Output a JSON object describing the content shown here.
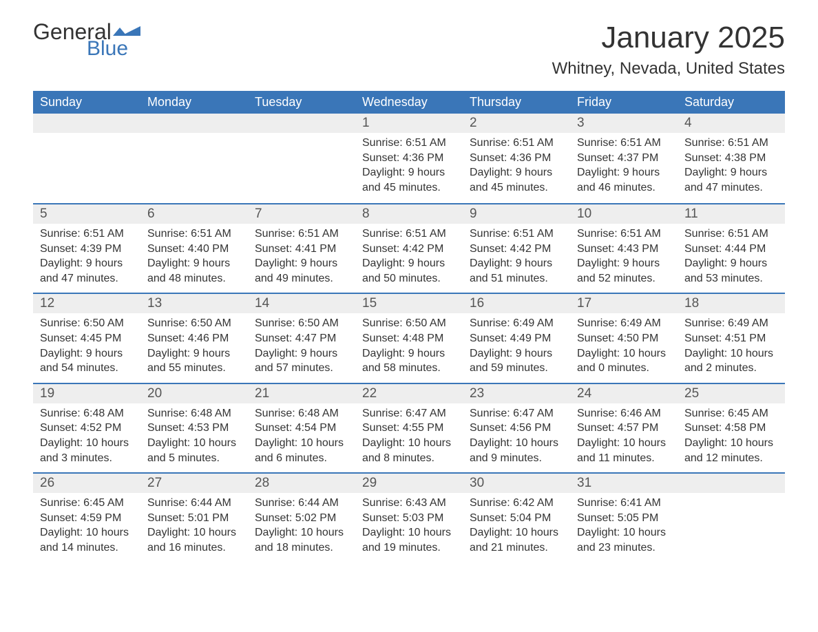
{
  "logo": {
    "general": "General",
    "blue": "Blue"
  },
  "title": "January 2025",
  "location": "Whitney, Nevada, United States",
  "colors": {
    "header_bg": "#3a76b8",
    "header_text": "#ffffff",
    "daynum_bg": "#eeeeee",
    "border": "#3a76b8",
    "text": "#333333"
  },
  "dayNames": [
    "Sunday",
    "Monday",
    "Tuesday",
    "Wednesday",
    "Thursday",
    "Friday",
    "Saturday"
  ],
  "weeks": [
    [
      {
        "day": "",
        "sunrise": "",
        "sunset": "",
        "daylight": ""
      },
      {
        "day": "",
        "sunrise": "",
        "sunset": "",
        "daylight": ""
      },
      {
        "day": "",
        "sunrise": "",
        "sunset": "",
        "daylight": ""
      },
      {
        "day": "1",
        "sunrise": "Sunrise: 6:51 AM",
        "sunset": "Sunset: 4:36 PM",
        "daylight": "Daylight: 9 hours and 45 minutes."
      },
      {
        "day": "2",
        "sunrise": "Sunrise: 6:51 AM",
        "sunset": "Sunset: 4:36 PM",
        "daylight": "Daylight: 9 hours and 45 minutes."
      },
      {
        "day": "3",
        "sunrise": "Sunrise: 6:51 AM",
        "sunset": "Sunset: 4:37 PM",
        "daylight": "Daylight: 9 hours and 46 minutes."
      },
      {
        "day": "4",
        "sunrise": "Sunrise: 6:51 AM",
        "sunset": "Sunset: 4:38 PM",
        "daylight": "Daylight: 9 hours and 47 minutes."
      }
    ],
    [
      {
        "day": "5",
        "sunrise": "Sunrise: 6:51 AM",
        "sunset": "Sunset: 4:39 PM",
        "daylight": "Daylight: 9 hours and 47 minutes."
      },
      {
        "day": "6",
        "sunrise": "Sunrise: 6:51 AM",
        "sunset": "Sunset: 4:40 PM",
        "daylight": "Daylight: 9 hours and 48 minutes."
      },
      {
        "day": "7",
        "sunrise": "Sunrise: 6:51 AM",
        "sunset": "Sunset: 4:41 PM",
        "daylight": "Daylight: 9 hours and 49 minutes."
      },
      {
        "day": "8",
        "sunrise": "Sunrise: 6:51 AM",
        "sunset": "Sunset: 4:42 PM",
        "daylight": "Daylight: 9 hours and 50 minutes."
      },
      {
        "day": "9",
        "sunrise": "Sunrise: 6:51 AM",
        "sunset": "Sunset: 4:42 PM",
        "daylight": "Daylight: 9 hours and 51 minutes."
      },
      {
        "day": "10",
        "sunrise": "Sunrise: 6:51 AM",
        "sunset": "Sunset: 4:43 PM",
        "daylight": "Daylight: 9 hours and 52 minutes."
      },
      {
        "day": "11",
        "sunrise": "Sunrise: 6:51 AM",
        "sunset": "Sunset: 4:44 PM",
        "daylight": "Daylight: 9 hours and 53 minutes."
      }
    ],
    [
      {
        "day": "12",
        "sunrise": "Sunrise: 6:50 AM",
        "sunset": "Sunset: 4:45 PM",
        "daylight": "Daylight: 9 hours and 54 minutes."
      },
      {
        "day": "13",
        "sunrise": "Sunrise: 6:50 AM",
        "sunset": "Sunset: 4:46 PM",
        "daylight": "Daylight: 9 hours and 55 minutes."
      },
      {
        "day": "14",
        "sunrise": "Sunrise: 6:50 AM",
        "sunset": "Sunset: 4:47 PM",
        "daylight": "Daylight: 9 hours and 57 minutes."
      },
      {
        "day": "15",
        "sunrise": "Sunrise: 6:50 AM",
        "sunset": "Sunset: 4:48 PM",
        "daylight": "Daylight: 9 hours and 58 minutes."
      },
      {
        "day": "16",
        "sunrise": "Sunrise: 6:49 AM",
        "sunset": "Sunset: 4:49 PM",
        "daylight": "Daylight: 9 hours and 59 minutes."
      },
      {
        "day": "17",
        "sunrise": "Sunrise: 6:49 AM",
        "sunset": "Sunset: 4:50 PM",
        "daylight": "Daylight: 10 hours and 0 minutes."
      },
      {
        "day": "18",
        "sunrise": "Sunrise: 6:49 AM",
        "sunset": "Sunset: 4:51 PM",
        "daylight": "Daylight: 10 hours and 2 minutes."
      }
    ],
    [
      {
        "day": "19",
        "sunrise": "Sunrise: 6:48 AM",
        "sunset": "Sunset: 4:52 PM",
        "daylight": "Daylight: 10 hours and 3 minutes."
      },
      {
        "day": "20",
        "sunrise": "Sunrise: 6:48 AM",
        "sunset": "Sunset: 4:53 PM",
        "daylight": "Daylight: 10 hours and 5 minutes."
      },
      {
        "day": "21",
        "sunrise": "Sunrise: 6:48 AM",
        "sunset": "Sunset: 4:54 PM",
        "daylight": "Daylight: 10 hours and 6 minutes."
      },
      {
        "day": "22",
        "sunrise": "Sunrise: 6:47 AM",
        "sunset": "Sunset: 4:55 PM",
        "daylight": "Daylight: 10 hours and 8 minutes."
      },
      {
        "day": "23",
        "sunrise": "Sunrise: 6:47 AM",
        "sunset": "Sunset: 4:56 PM",
        "daylight": "Daylight: 10 hours and 9 minutes."
      },
      {
        "day": "24",
        "sunrise": "Sunrise: 6:46 AM",
        "sunset": "Sunset: 4:57 PM",
        "daylight": "Daylight: 10 hours and 11 minutes."
      },
      {
        "day": "25",
        "sunrise": "Sunrise: 6:45 AM",
        "sunset": "Sunset: 4:58 PM",
        "daylight": "Daylight: 10 hours and 12 minutes."
      }
    ],
    [
      {
        "day": "26",
        "sunrise": "Sunrise: 6:45 AM",
        "sunset": "Sunset: 4:59 PM",
        "daylight": "Daylight: 10 hours and 14 minutes."
      },
      {
        "day": "27",
        "sunrise": "Sunrise: 6:44 AM",
        "sunset": "Sunset: 5:01 PM",
        "daylight": "Daylight: 10 hours and 16 minutes."
      },
      {
        "day": "28",
        "sunrise": "Sunrise: 6:44 AM",
        "sunset": "Sunset: 5:02 PM",
        "daylight": "Daylight: 10 hours and 18 minutes."
      },
      {
        "day": "29",
        "sunrise": "Sunrise: 6:43 AM",
        "sunset": "Sunset: 5:03 PM",
        "daylight": "Daylight: 10 hours and 19 minutes."
      },
      {
        "day": "30",
        "sunrise": "Sunrise: 6:42 AM",
        "sunset": "Sunset: 5:04 PM",
        "daylight": "Daylight: 10 hours and 21 minutes."
      },
      {
        "day": "31",
        "sunrise": "Sunrise: 6:41 AM",
        "sunset": "Sunset: 5:05 PM",
        "daylight": "Daylight: 10 hours and 23 minutes."
      },
      {
        "day": "",
        "sunrise": "",
        "sunset": "",
        "daylight": ""
      }
    ]
  ]
}
